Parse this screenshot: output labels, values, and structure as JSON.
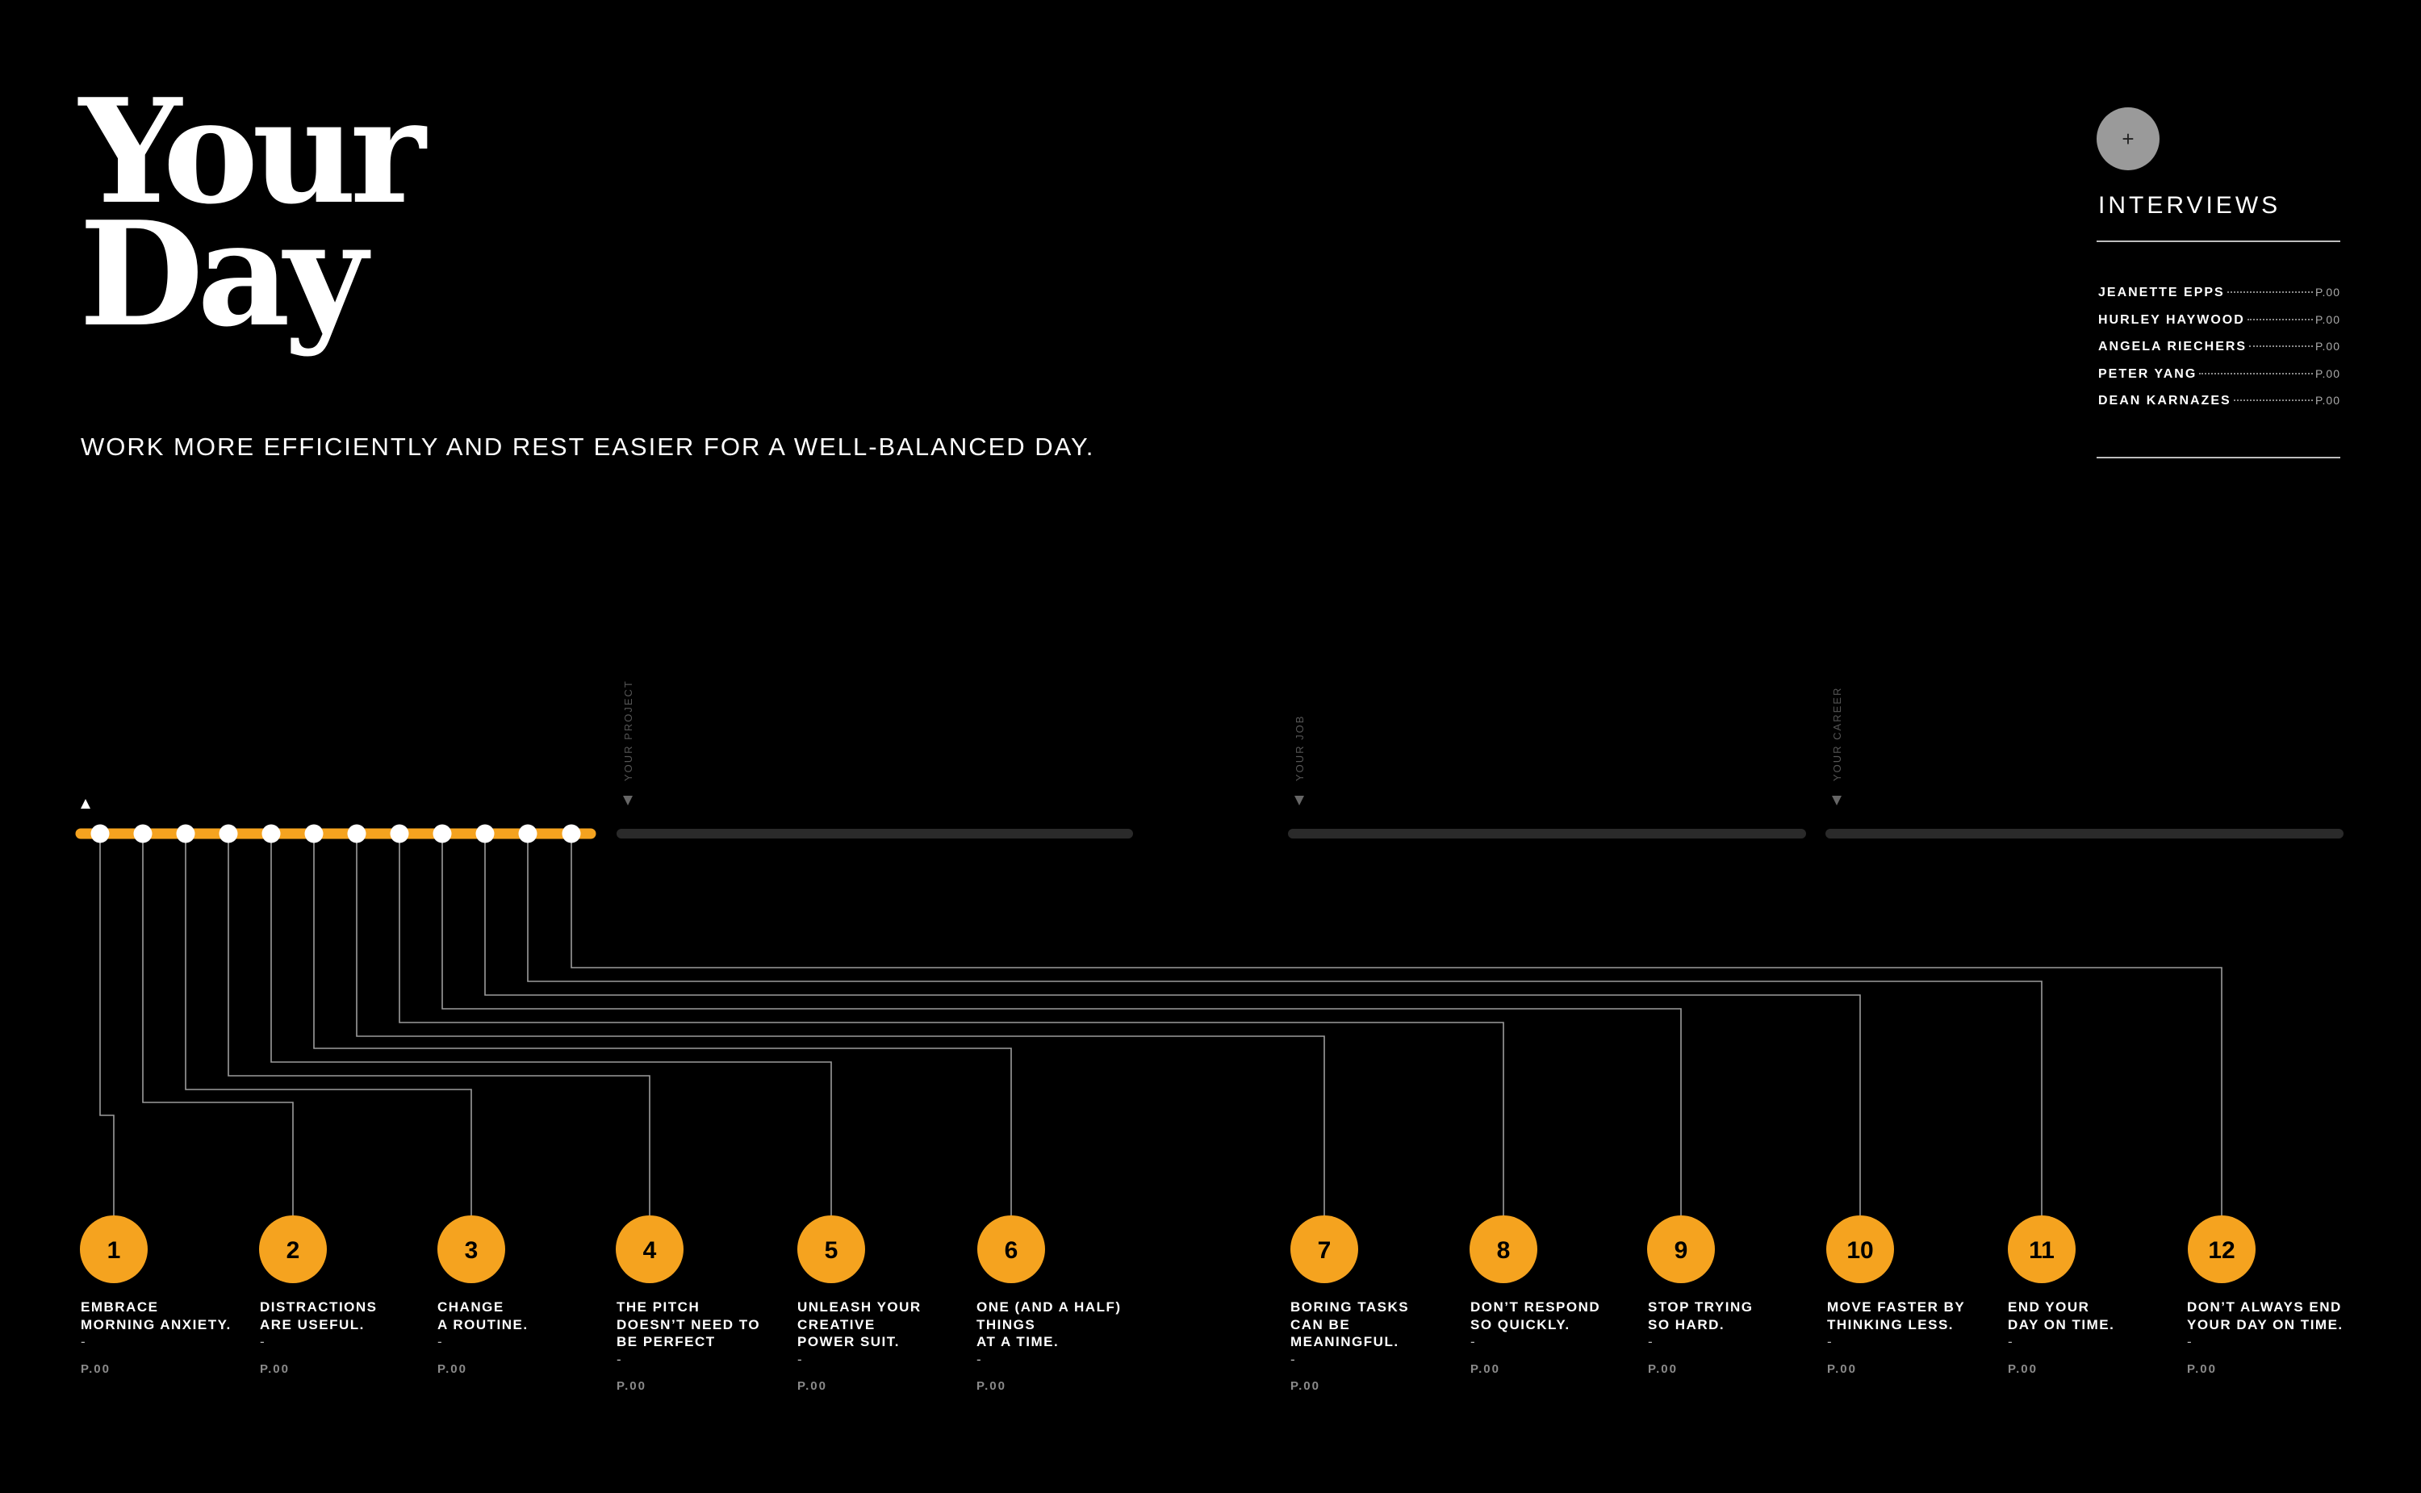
{
  "title_line1": "Your",
  "title_line2": "Day",
  "subtitle": "WORK MORE EFFICIENTLY AND REST EASIER FOR A WELL-BALANCED DAY.",
  "sidebar": {
    "plus_label": "+",
    "heading": "INTERVIEWS",
    "interviews": [
      {
        "name": "JEANETTE EPPS",
        "page": "P.00"
      },
      {
        "name": "HURLEY HAYWOOD",
        "page": "P.00"
      },
      {
        "name": "ANGELA RIECHERS",
        "page": "P.00"
      },
      {
        "name": "PETER YANG",
        "page": "P.00"
      },
      {
        "name": "DEAN KARNAZES",
        "page": "P.00"
      }
    ]
  },
  "categories": [
    {
      "label": "YOUR PROJECT"
    },
    {
      "label": "YOUR JOB"
    },
    {
      "label": "YOUR CAREER"
    }
  ],
  "colors": {
    "accent": "#f5a31f",
    "node": "#ffffff",
    "inactive_track": "#2a2a2a",
    "connector": "#9c9c9c"
  },
  "steps": [
    {
      "number": "1",
      "title": "EMBRACE\nMORNING ANXIETY.",
      "dash": "-",
      "page": "P.00"
    },
    {
      "number": "2",
      "title": "DISTRACTIONS\nARE USEFUL.",
      "dash": "-",
      "page": "P.00"
    },
    {
      "number": "3",
      "title": "CHANGE\nA ROUTINE.",
      "dash": "-",
      "page": "P.00"
    },
    {
      "number": "4",
      "title": "THE PITCH\nDOESN’T NEED TO\nBE PERFECT",
      "dash": "-",
      "page": "P.00"
    },
    {
      "number": "5",
      "title": "UNLEASH YOUR\nCREATIVE\nPOWER SUIT.",
      "dash": "-",
      "page": "P.00"
    },
    {
      "number": "6",
      "title": "ONE (AND A HALF)\nTHINGS\nAT A TIME.",
      "dash": "-",
      "page": "P.00"
    },
    {
      "number": "7",
      "title": "BORING TASKS\nCAN BE\nMEANINGFUL.",
      "dash": "-",
      "page": "P.00"
    },
    {
      "number": "8",
      "title": "DON’T RESPOND\nSO QUICKLY.",
      "dash": "-",
      "page": "P.00"
    },
    {
      "number": "9",
      "title": "STOP TRYING\nSO HARD.",
      "dash": "-",
      "page": "P.00"
    },
    {
      "number": "10",
      "title": "MOVE FASTER BY\nTHINKING LESS.",
      "dash": "-",
      "page": "P.00"
    },
    {
      "number": "11",
      "title": "END YOUR\nDAY ON TIME.",
      "dash": "-",
      "page": "P.00"
    },
    {
      "number": "12",
      "title": "DON’T ALWAYS END\nYOUR DAY ON TIME.",
      "dash": "-",
      "page": "P.00"
    }
  ]
}
